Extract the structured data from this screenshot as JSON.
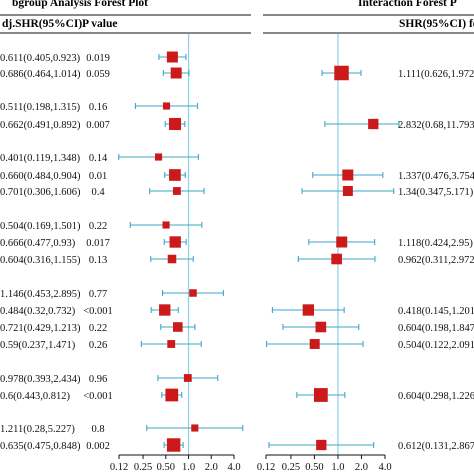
{
  "chart_data": {
    "type": "forest",
    "left_panel": {
      "title": "bgroup Analysis Forest Plot",
      "col_shr": "dj.SHR(95%CI)",
      "col_p": "P value",
      "x_ticks": [
        "0.12",
        "0.25",
        "0.50",
        "1.0",
        "2.0",
        "4.0"
      ],
      "reference": 1.0,
      "rows": [
        {
          "label": "0.611(0.405,0.923)",
          "p": "0.019",
          "est": 0.611,
          "lo": 0.405,
          "hi": 0.923,
          "size": 1
        },
        {
          "label": "0.686(0.464,1.014)",
          "p": "0.059",
          "est": 0.686,
          "lo": 0.464,
          "hi": 1.014,
          "size": 1
        },
        {
          "label": "0.511(0.198,1.315)",
          "p": "0.16",
          "est": 0.511,
          "lo": 0.198,
          "hi": 1.315,
          "size": 0.45
        },
        {
          "label": "0.662(0.491,0.892)",
          "p": "0.007",
          "est": 0.662,
          "lo": 0.491,
          "hi": 0.892,
          "size": 1.15
        },
        {
          "label": "0.401(0.119,1.348)",
          "p": "0.14",
          "est": 0.401,
          "lo": 0.119,
          "hi": 1.348,
          "size": 0.45
        },
        {
          "label": "0.660(0.484,0.904)",
          "p": "0.01",
          "est": 0.66,
          "lo": 0.484,
          "hi": 0.904,
          "size": 1.1
        },
        {
          "label": "0.701(0.306,1.606)",
          "p": "0.4",
          "est": 0.701,
          "lo": 0.306,
          "hi": 1.606,
          "size": 0.55
        },
        {
          "label": "0.504(0.169,1.501)",
          "p": "0.22",
          "est": 0.504,
          "lo": 0.169,
          "hi": 1.501,
          "size": 0.45
        },
        {
          "label": "0.666(0.477,0.93)",
          "p": "0.017",
          "est": 0.666,
          "lo": 0.477,
          "hi": 0.93,
          "size": 1.05
        },
        {
          "label": "0.604(0.316,1.155)",
          "p": "0.13",
          "est": 0.604,
          "lo": 0.316,
          "hi": 1.155,
          "size": 0.65
        },
        {
          "label": "1.146(0.453,2.895)",
          "p": "0.77",
          "est": 1.146,
          "lo": 0.453,
          "hi": 2.895,
          "size": 0.5
        },
        {
          "label": "0.484(0.32,0.732)",
          "p": "<0.001",
          "est": 0.484,
          "lo": 0.32,
          "hi": 0.732,
          "size": 1.05
        },
        {
          "label": "0.721(0.429,1.213)",
          "p": "0.22",
          "est": 0.721,
          "lo": 0.429,
          "hi": 1.213,
          "size": 0.8
        },
        {
          "label": "0.59(0.237,1.471)",
          "p": "0.26",
          "est": 0.59,
          "lo": 0.237,
          "hi": 1.471,
          "size": 0.55
        },
        {
          "label": "0.978(0.393,2.434)",
          "p": "0.96",
          "est": 0.978,
          "lo": 0.393,
          "hi": 2.434,
          "size": 0.55
        },
        {
          "label": "0.6(0.443,0.812)",
          "p": "<0.001",
          "est": 0.6,
          "lo": 0.443,
          "hi": 0.812,
          "size": 1.25
        },
        {
          "label": "1.211(0.28,5.227)",
          "p": "0.8",
          "est": 1.211,
          "lo": 0.28,
          "hi": 5.227,
          "size": 0.45
        },
        {
          "label": "0.635(0.475,0.848)",
          "p": "0.002",
          "est": 0.635,
          "lo": 0.475,
          "hi": 0.848,
          "size": 1.35
        }
      ]
    },
    "right_panel": {
      "title": "Interaction Forest P",
      "col_shr": "SHR(95%CI) fo",
      "x_ticks": [
        "0.12",
        "0.25",
        "0.50",
        "1.0",
        "2.0",
        "4.0"
      ],
      "reference": 1.0,
      "rows": [
        {
          "row": 1,
          "label": "1.111(0.626,1.972)",
          "est": 1.111,
          "lo": 0.626,
          "hi": 1.972,
          "size": 1.5
        },
        {
          "row": 3,
          "label": "2.832(0.68,11.793)",
          "est": 2.832,
          "lo": 0.68,
          "hi": 11.793,
          "size": 0.9
        },
        {
          "row": 5,
          "label": "1.337(0.476,3.754)",
          "est": 1.337,
          "lo": 0.476,
          "hi": 3.754,
          "size": 1.0
        },
        {
          "row": 6,
          "label": "1.34(0.347,5.171)",
          "est": 1.34,
          "lo": 0.347,
          "hi": 5.171,
          "size": 0.85
        },
        {
          "row": 8,
          "label": "1.118(0.424,2.95)",
          "est": 1.118,
          "lo": 0.424,
          "hi": 2.95,
          "size": 1.0
        },
        {
          "row": 9,
          "label": "0.962(0.311,2.972)",
          "est": 0.962,
          "lo": 0.311,
          "hi": 2.972,
          "size": 0.95
        },
        {
          "row": 11,
          "label": "0.418(0.145,1.201)",
          "est": 0.418,
          "lo": 0.145,
          "hi": 1.201,
          "size": 1.05
        },
        {
          "row": 12,
          "label": "0.604(0.198,1.847)",
          "est": 0.604,
          "lo": 0.198,
          "hi": 1.847,
          "size": 0.95
        },
        {
          "row": 13,
          "label": "0.504(0.122,2.091)",
          "est": 0.504,
          "lo": 0.122,
          "hi": 2.091,
          "size": 0.85
        },
        {
          "row": 15,
          "label": "0.604(0.298,1.226)",
          "est": 0.604,
          "lo": 0.298,
          "hi": 1.226,
          "size": 1.4
        },
        {
          "row": 17,
          "label": "0.612(0.131,2.867)",
          "est": 0.612,
          "lo": 0.131,
          "hi": 2.867,
          "size": 0.9
        }
      ]
    },
    "colors": {
      "marker": "#cc1a1a",
      "ci": "#3fa7c8",
      "reference": "#8fd0e3",
      "text": "#111111"
    },
    "x_scale": "log2"
  }
}
